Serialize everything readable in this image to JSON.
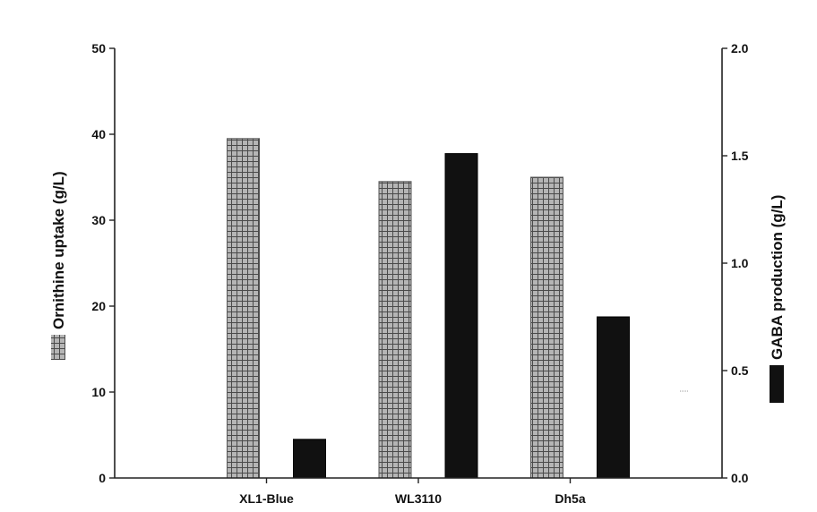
{
  "chart_data": {
    "type": "bar",
    "categories": [
      "XL1-Blue",
      "WL3110",
      "Dh5a"
    ],
    "y_left": {
      "label": "Ornithine uptake (g/L)",
      "lim": [
        0,
        50
      ],
      "ticks": [
        "0",
        "10",
        "20",
        "30",
        "40",
        "50"
      ],
      "tick_values": [
        0,
        10,
        20,
        30,
        40,
        50
      ]
    },
    "y_right": {
      "label": "GABA production (g/L)",
      "lim": [
        0,
        2.0
      ],
      "ticks": [
        "0.0",
        "0.5",
        "1.0",
        "1.5",
        "2.0"
      ],
      "tick_values": [
        0,
        0.5,
        1.0,
        1.5,
        2.0
      ]
    },
    "series": [
      {
        "name": "Ornithine uptake (g/L)",
        "axis": "left",
        "color": "#8a8a8a",
        "pattern": "grid",
        "values": [
          39.5,
          34.5,
          35.0
        ]
      },
      {
        "name": "GABA production (g/L)",
        "axis": "right",
        "color": "#111111",
        "pattern": "solid",
        "values": [
          0.18,
          1.51,
          0.75
        ]
      }
    ],
    "grid": false,
    "legend": "inline with axis titles"
  }
}
